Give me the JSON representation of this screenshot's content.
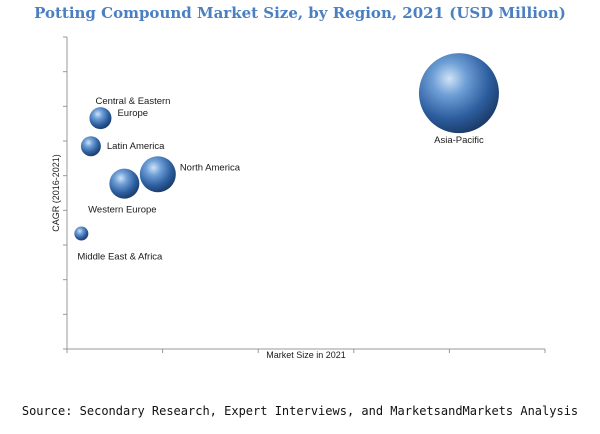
{
  "chart_data": {
    "type": "bubble",
    "title": "Potting Compound Market Size, by Region, 2021 (USD Million)",
    "xlabel": "Market Size in 2021",
    "ylabel": "CAGR (2016-2021)",
    "grid": false,
    "xlim": [
      0,
      100
    ],
    "ylim": [
      0,
      100
    ],
    "series": [
      {
        "label": "Asia-Pacific",
        "x": 82,
        "y": 82,
        "size": 40
      },
      {
        "label": "Central & Eastern\nEurope",
        "x": 7,
        "y": 74,
        "size": 11
      },
      {
        "label": "Latin America",
        "x": 5,
        "y": 65,
        "size": 10
      },
      {
        "label": "North America",
        "x": 19,
        "y": 56,
        "size": 18
      },
      {
        "label": "Western Europe",
        "x": 12,
        "y": 53,
        "size": 15
      },
      {
        "label": "Middle East & Africa",
        "x": 3,
        "y": 37,
        "size": 7
      }
    ]
  },
  "footer": {
    "source": "Source: Secondary Research, Expert Interviews, and MarketsandMarkets Analysis"
  }
}
